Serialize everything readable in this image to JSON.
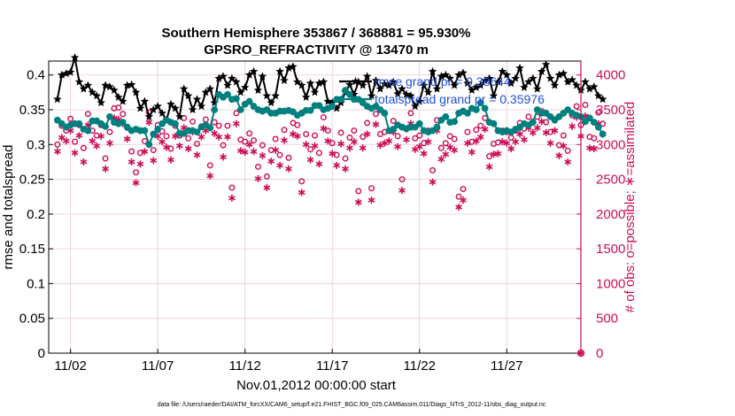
{
  "chart_data": {
    "type": "line",
    "title": "Southern Hemisphere 353867 / 368881 = 95.930%",
    "subtitle": "GPSRO_REFRACTIVITY @ 13470 m",
    "xlabel": "Nov.01,2012 00:00:00 start",
    "ylabel_left": "rmse and totalspread",
    "ylabel_right": "# of obs: o=possible; ∗=assimilated",
    "footnote": "data file: /Users/raeder/DAI/ATM_forcXX/CAM6_setup/f.e21.FHIST_BGC.f09_025.CAM6assim.011/Diags_NTrS_2012-11/obs_diag_output.nc",
    "xlim": [
      0.5,
      31
    ],
    "ylim_left": [
      0,
      0.42
    ],
    "ylim_right": [
      0,
      4200
    ],
    "x_ticks": [
      1.75,
      6.75,
      11.75,
      16.75,
      21.75,
      26.75
    ],
    "x_tick_labels": [
      "11/02",
      "11/07",
      "11/12",
      "11/17",
      "11/22",
      "11/27"
    ],
    "y_left_ticks": [
      0,
      0.05,
      0.1,
      0.15,
      0.2,
      0.25,
      0.3,
      0.35,
      0.4
    ],
    "y_left_tick_labels": [
      "0",
      "0.05",
      "0.1",
      "0.15",
      "0.2",
      "0.25",
      "0.3",
      "0.35",
      "0.4"
    ],
    "y_right_ticks": [
      0,
      500,
      1000,
      1500,
      2000,
      2500,
      3000,
      3500,
      4000
    ],
    "y_right_tick_labels": [
      "0",
      "500",
      "1000",
      "1500",
      "2000",
      "2500",
      "3000",
      "3500",
      "4000"
    ],
    "grid": true,
    "legend_position": "top-right",
    "colors": {
      "rmse": "#000000",
      "spread": "#007f7f",
      "obs": "#cc0e57",
      "legend_text": "#1f4fd6",
      "grid": "#e8c8d4"
    },
    "series": [
      {
        "name": "rmse grand pr = 0.38644",
        "axis": "left",
        "marker": "star",
        "values": [
          0.365,
          0.4,
          0.402,
          0.404,
          0.425,
          0.39,
          0.38,
          0.385,
          0.375,
          0.37,
          0.36,
          0.385,
          0.383,
          0.378,
          0.368,
          0.362,
          0.385,
          0.386,
          0.375,
          0.352,
          0.362,
          0.34,
          0.35,
          0.355,
          0.345,
          0.335,
          0.358,
          0.352,
          0.34,
          0.38,
          0.37,
          0.35,
          0.365,
          0.355,
          0.375,
          0.38,
          0.36,
          0.395,
          0.398,
          0.385,
          0.395,
          0.39,
          0.375,
          0.382,
          0.4,
          0.405,
          0.378,
          0.398,
          0.37,
          0.36,
          0.37,
          0.405,
          0.392,
          0.41,
          0.412,
          0.39,
          0.385,
          0.368,
          0.388,
          0.375,
          0.388,
          0.39,
          0.362,
          0.36,
          0.352,
          0.36,
          0.375,
          0.386,
          0.372,
          0.39,
          0.385,
          0.398,
          0.37,
          0.392,
          0.38,
          0.387,
          0.385,
          0.39,
          0.373,
          0.38,
          0.372,
          0.37,
          0.355,
          0.362,
          0.385,
          0.375,
          0.405,
          0.38,
          0.398,
          0.4,
          0.395,
          0.385,
          0.4,
          0.403,
          0.388,
          0.378,
          0.382,
          0.385,
          0.392,
          0.395,
          0.37,
          0.39,
          0.405,
          0.4,
          0.388,
          0.395,
          0.41,
          0.382,
          0.39,
          0.395,
          0.38,
          0.405,
          0.415,
          0.395,
          0.385,
          0.4,
          0.402,
          0.39,
          0.393,
          0.385,
          0.378,
          0.39,
          0.38,
          0.383,
          0.37,
          0.365
        ]
      },
      {
        "name": "totalspread grand pr = 0.35976",
        "axis": "left",
        "marker": "circle",
        "values": [
          0.335,
          0.33,
          0.325,
          0.328,
          0.33,
          0.33,
          0.322,
          0.32,
          0.334,
          0.334,
          0.33,
          0.326,
          0.34,
          0.332,
          0.33,
          0.332,
          0.325,
          0.32,
          0.322,
          0.32,
          0.32,
          0.3,
          0.315,
          0.322,
          0.33,
          0.335,
          0.332,
          0.33,
          0.316,
          0.316,
          0.32,
          0.32,
          0.318,
          0.325,
          0.328,
          0.324,
          0.35,
          0.372,
          0.368,
          0.372,
          0.365,
          0.366,
          0.35,
          0.358,
          0.362,
          0.355,
          0.35,
          0.348,
          0.35,
          0.345,
          0.345,
          0.348,
          0.348,
          0.349,
          0.347,
          0.342,
          0.345,
          0.349,
          0.349,
          0.356,
          0.356,
          0.35,
          0.352,
          0.355,
          0.365,
          0.365,
          0.378,
          0.372,
          0.365,
          0.365,
          0.36,
          0.355,
          0.352,
          0.355,
          0.35,
          0.345,
          0.32,
          0.322,
          0.328,
          0.325,
          0.323,
          0.325,
          0.325,
          0.33,
          0.32,
          0.318,
          0.32,
          0.325,
          0.335,
          0.34,
          0.332,
          0.333,
          0.345,
          0.348,
          0.345,
          0.352,
          0.35,
          0.36,
          0.352,
          0.332,
          0.33,
          0.32,
          0.318,
          0.32,
          0.318,
          0.322,
          0.325,
          0.33,
          0.328,
          0.332,
          0.35,
          0.345,
          0.345,
          0.34,
          0.335,
          0.34,
          0.345,
          0.35,
          0.345,
          0.342,
          0.34,
          0.333,
          0.338,
          0.332,
          0.325,
          0.315
        ]
      },
      {
        "name": "possible",
        "axis": "right",
        "marker": "open-circle",
        "values": [
          3000,
          3270,
          3200,
          3370,
          3040,
          3280,
          2950,
          3440,
          3200,
          3130,
          3280,
          2800,
          3180,
          3520,
          3530,
          3440,
          3240,
          2900,
          2600,
          2880,
          3050,
          3460,
          2920,
          3280,
          3190,
          3120,
          2940,
          3270,
          3130,
          3380,
          3090,
          3330,
          3010,
          3260,
          3360,
          2700,
          3320,
          3270,
          2990,
          3270,
          2380,
          3450,
          3070,
          3040,
          3160,
          3060,
          2680,
          2990,
          2540,
          2920,
          3080,
          2850,
          3210,
          2810,
          3310,
          3280,
          2470,
          3150,
          2930,
          3130,
          2880,
          3390,
          3200,
          3020,
          2850,
          3170,
          2800,
          3100,
          3200,
          2330,
          3110,
          3310,
          2370,
          3440,
          3150,
          3180,
          3200,
          3340,
          3120,
          2500,
          3220,
          3450,
          3090,
          3130,
          3020,
          3200,
          2630,
          3350,
          2950,
          3020,
          3120,
          3080,
          2250,
          2360,
          3180,
          3040,
          3210,
          3270,
          3380,
          2830,
          3010,
          3030,
          3200,
          3180,
          3100,
          3200,
          3310,
          3230,
          3400,
          3330,
          3400,
          3480,
          3320,
          3180,
          3360,
          2990,
          3130,
          2910,
          3420,
          3550,
          3280,
          3570,
          3110,
          3090,
          3460,
          3300
        ]
      },
      {
        "name": "assimilated",
        "axis": "right",
        "marker": "star",
        "values": [
          2900,
          3100,
          3050,
          3200,
          2880,
          3130,
          2750,
          3280,
          3050,
          2980,
          3120,
          2650,
          3020,
          3380,
          3360,
          3300,
          3080,
          2750,
          2450,
          2720,
          2900,
          3320,
          2770,
          3120,
          3040,
          2960,
          2780,
          3120,
          2980,
          3240,
          2940,
          3180,
          2850,
          3110,
          3200,
          2550,
          3160,
          3110,
          2820,
          3110,
          2230,
          3300,
          2910,
          2890,
          3000,
          2900,
          2510,
          2840,
          2380,
          2760,
          2920,
          2700,
          3060,
          2650,
          3150,
          3120,
          2310,
          3000,
          2780,
          2980,
          2720,
          3230,
          3050,
          2870,
          2700,
          3010,
          2650,
          2950,
          3040,
          2170,
          2950,
          3150,
          2200,
          3290,
          2990,
          3020,
          3050,
          3180,
          2970,
          2340,
          3070,
          3300,
          2930,
          2970,
          2870,
          3040,
          2460,
          3200,
          2790,
          2860,
          2960,
          2920,
          2100,
          2200,
          3020,
          2890,
          3050,
          3110,
          3220,
          2680,
          2860,
          2870,
          3040,
          3020,
          2940,
          3040,
          3150,
          3070,
          3240,
          3170,
          3240,
          3330,
          3170,
          3020,
          3200,
          2840,
          2980,
          2750,
          3260,
          3390,
          3120,
          3410,
          2950,
          2940,
          3300,
          3150
        ]
      }
    ]
  }
}
